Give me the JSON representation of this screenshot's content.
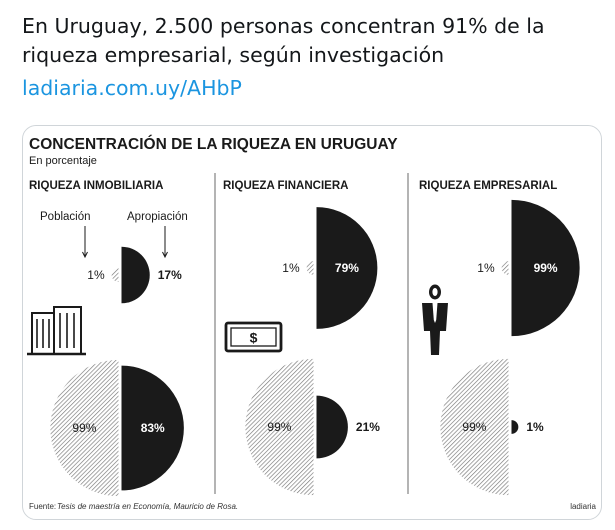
{
  "tweet": {
    "text": "En Uruguay, 2.500 personas concentran 91% de la riqueza empresarial, según investigación",
    "link": "ladiaria.com.uy/AHbP"
  },
  "infographic": {
    "title": "CONCENTRACIÓN DE LA RIQUEZA EN URUGUAY",
    "subtitle": "En porcentaje",
    "legend_population": "Población",
    "legend_appropriation": "Apropiación",
    "source_label": "Fuente:",
    "source_text": "Tesis de maestría en Economía, Mauricio de Rosa.",
    "brand": "ladiaria",
    "icon_dollar": "$",
    "colors": {
      "dark": "#1a1a1a",
      "hatch": "#777777"
    }
  },
  "chart_data": {
    "type": "pie",
    "title": "CONCENTRACIÓN DE LA RIQUEZA EN URUGUAY",
    "subtitle": "En porcentaje",
    "panels": [
      {
        "name": "RIQUEZA INMOBILIARIA",
        "icon": "building-icon",
        "top": {
          "population": 1,
          "population_label": "1%",
          "appropriation": 17,
          "appropriation_label": "17%"
        },
        "bottom": {
          "population": 99,
          "population_label": "99%",
          "appropriation": 83,
          "appropriation_label": "83%"
        }
      },
      {
        "name": "RIQUEZA FINANCIERA",
        "icon": "money-icon",
        "top": {
          "population": 1,
          "population_label": "1%",
          "appropriation": 79,
          "appropriation_label": "79%"
        },
        "bottom": {
          "population": 99,
          "population_label": "99%",
          "appropriation": 21,
          "appropriation_label": "21%"
        }
      },
      {
        "name": "RIQUEZA EMPRESARIAL",
        "icon": "businessman-icon",
        "top": {
          "population": 1,
          "population_label": "1%",
          "appropriation": 99,
          "appropriation_label": "99%"
        },
        "bottom": {
          "population": 99,
          "population_label": "99%",
          "appropriation": 1,
          "appropriation_label": "1%"
        }
      }
    ]
  }
}
